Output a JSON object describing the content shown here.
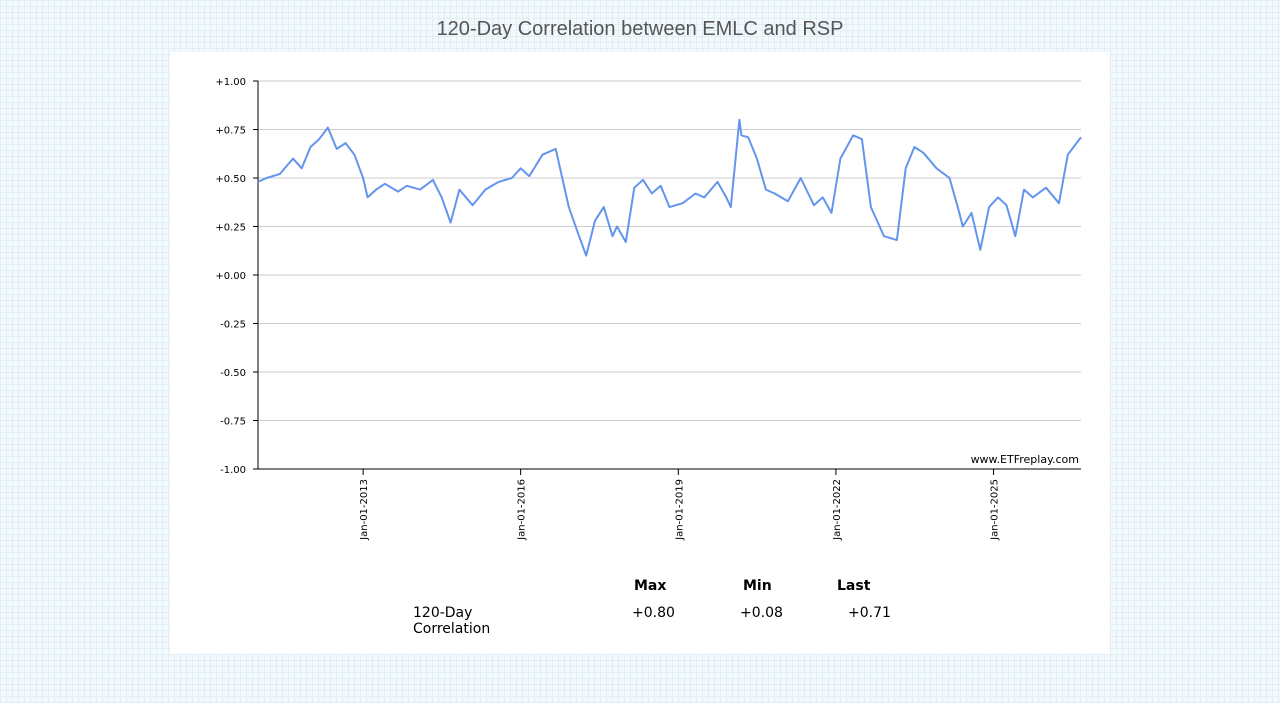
{
  "title": "120-Day Correlation between EMLC and RSP",
  "watermark": "www.ETFreplay.com",
  "stats": {
    "headers": [
      "Max",
      "Min",
      "Last"
    ],
    "row_label": "120-Day Correlation",
    "values": [
      "+0.80",
      "+0.08",
      "+0.71"
    ]
  },
  "colors": {
    "line": "#6495ed",
    "grid": "#cccccc",
    "axis": "#000000"
  },
  "chart_data": {
    "type": "line",
    "title": "120-Day Correlation between EMLC and RSP",
    "xlabel": "",
    "ylabel": "",
    "ylim": [
      -1.0,
      1.0
    ],
    "y_ticks": [
      "+1.00",
      "+0.75",
      "+0.50",
      "+0.25",
      "+0.00",
      "-0.25",
      "-0.50",
      "-0.75",
      "-1.00"
    ],
    "x_ticks": [
      "Jan-01-2013",
      "Jan-01-2016",
      "Jan-01-2019",
      "Jan-01-2022",
      "Jan-01-2025"
    ],
    "xlim": [
      "2011-01-01",
      "2026-09-01"
    ],
    "grid": true,
    "series": [
      {
        "name": "",
        "x": [
          "2011-01-01",
          "2011-03-01",
          "2011-06-01",
          "2011-09-01",
          "2011-11-01",
          "2012-01-01",
          "2012-03-01",
          "2012-05-01",
          "2012-07-01",
          "2012-09-01",
          "2012-11-01",
          "2013-01-01",
          "2013-02-01",
          "2013-04-01",
          "2013-06-01",
          "2013-09-01",
          "2013-11-01",
          "2014-02-01",
          "2014-05-01",
          "2014-07-01",
          "2014-09-01",
          "2014-11-01",
          "2015-02-01",
          "2015-05-01",
          "2015-08-01",
          "2015-11-01",
          "2016-01-01",
          "2016-03-01",
          "2016-06-01",
          "2016-09-01",
          "2016-12-01",
          "2017-02-01",
          "2017-04-01",
          "2017-06-01",
          "2017-08-01",
          "2017-10-01",
          "2017-11-01",
          "2018-01-01",
          "2018-03-01",
          "2018-05-01",
          "2018-07-01",
          "2018-09-01",
          "2018-11-01",
          "2019-02-01",
          "2019-05-01",
          "2019-07-01",
          "2019-10-01",
          "2019-12-01",
          "2020-01-01",
          "2020-03-01",
          "2020-03-15",
          "2020-05-01",
          "2020-07-01",
          "2020-09-01",
          "2020-11-01",
          "2021-02-01",
          "2021-05-01",
          "2021-08-01",
          "2021-10-01",
          "2021-12-01",
          "2022-02-01",
          "2022-05-01",
          "2022-07-01",
          "2022-09-01",
          "2022-12-01",
          "2023-03-01",
          "2023-05-01",
          "2023-07-01",
          "2023-09-01",
          "2023-12-01",
          "2024-03-01",
          "2024-05-01",
          "2024-06-01",
          "2024-08-01",
          "2024-10-01",
          "2024-12-01",
          "2025-02-01",
          "2025-04-01",
          "2025-06-01",
          "2025-08-01",
          "2025-10-01",
          "2026-01-01",
          "2026-04-01",
          "2026-06-01",
          "2026-08-01",
          "2026-09-01"
        ],
        "values": [
          0.48,
          0.5,
          0.52,
          0.6,
          0.55,
          0.66,
          0.7,
          0.76,
          0.65,
          0.68,
          0.62,
          0.5,
          0.4,
          0.44,
          0.47,
          0.43,
          0.46,
          0.44,
          0.49,
          0.4,
          0.27,
          0.44,
          0.36,
          0.44,
          0.48,
          0.5,
          0.55,
          0.51,
          0.62,
          0.65,
          0.35,
          0.22,
          0.1,
          0.28,
          0.35,
          0.2,
          0.25,
          0.17,
          0.45,
          0.49,
          0.42,
          0.46,
          0.35,
          0.37,
          0.42,
          0.4,
          0.48,
          0.4,
          0.35,
          0.8,
          0.72,
          0.71,
          0.6,
          0.44,
          0.42,
          0.38,
          0.5,
          0.36,
          0.4,
          0.32,
          0.6,
          0.72,
          0.7,
          0.35,
          0.2,
          0.18,
          0.55,
          0.66,
          0.63,
          0.55,
          0.5,
          0.34,
          0.25,
          0.32,
          0.13,
          0.35,
          0.4,
          0.36,
          0.2,
          0.44,
          0.4,
          0.45,
          0.37,
          0.62,
          0.68,
          0.71
        ]
      }
    ]
  }
}
